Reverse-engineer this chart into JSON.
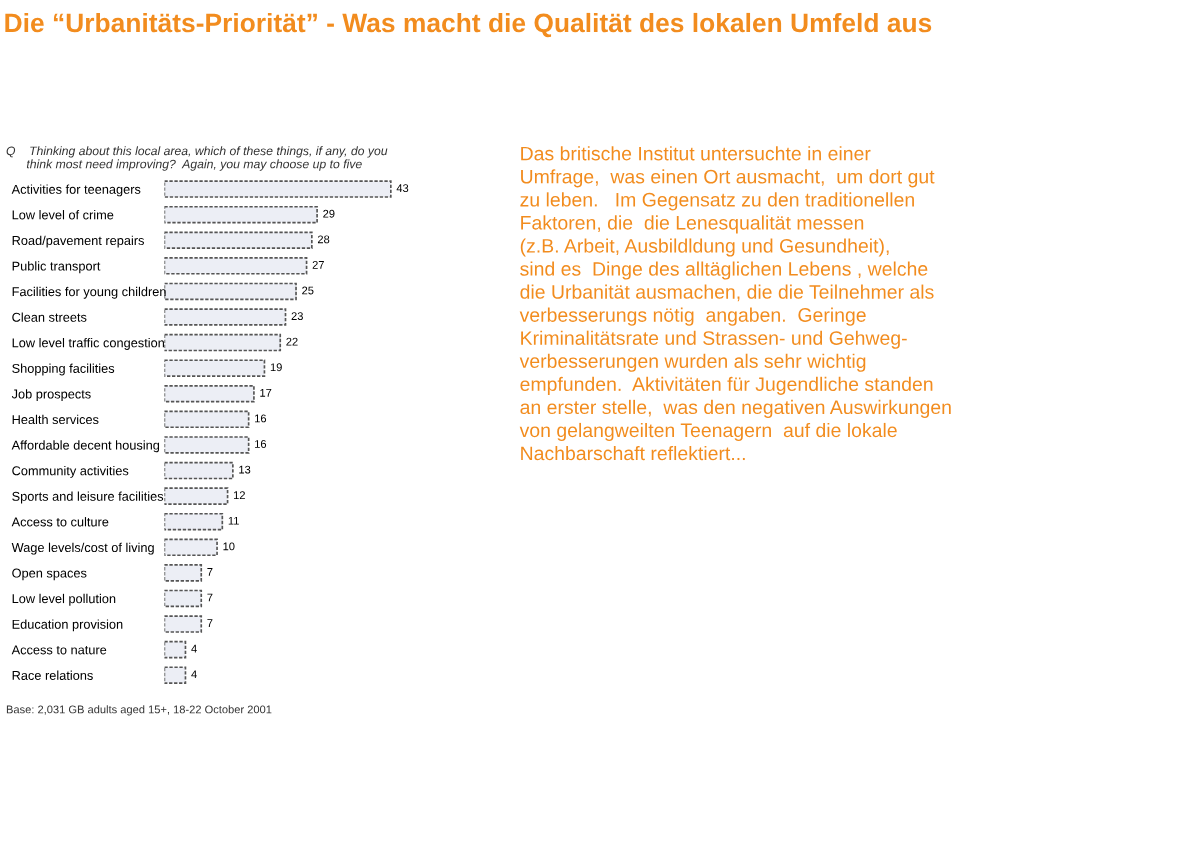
{
  "chart_data": {
    "type": "bar",
    "orientation": "horizontal",
    "title": "Die “Urbanitäts-Priorität” - Was macht die Qualität des lokalen Umfeld aus",
    "subtitle": "Q    Thinking about this local area, which of these things, if any, do you\n      think most need improving?  Again, you may choose up to five",
    "categories": [
      "Activities for teenagers",
      "Low level of crime",
      "Road/pavement repairs",
      "Public transport",
      "Facilities for young children",
      "Clean streets",
      "Low level traffic congestion",
      "Shopping facilities",
      "Job prospects",
      "Health services",
      "Affordable decent housing",
      "Community activities",
      "Sports and leisure facilities",
      "Access to culture",
      "Wage levels/cost of living",
      "Open spaces",
      "Low level pollution",
      "Education provision",
      "Access to nature",
      "Race relations"
    ],
    "values": [
      43,
      29,
      28,
      27,
      25,
      23,
      22,
      19,
      17,
      16,
      16,
      13,
      12,
      11,
      10,
      7,
      7,
      7,
      4,
      4
    ],
    "color": "#eceef5",
    "data_labels": true,
    "annotations": [
      "Base: 2,031 GB adults aged 15+, 18-22 October 2001",
      "Das britische Institut untersuchte in einer\nUmfrage,  was einen Ort ausmacht,  um dort gut\nzu leben.   Im Gegensatz zu den traditionellen\nFaktoren, die  die Lenesqualität messen\n(z.B. Arbeit, Ausbildldung und Gesundheit),\nsind es  Dinge des alltäglichen Lebens , welche\ndie Urbanität ausmachen, die die Teilnehmer als\nverbesserungs nötig  angaben.  Geringe\nKriminalitätsrate und Strassen- und Gehweg-\nverbesserungen wurden als sehr wichtig\nempfunden.  Aktivitäten für Jugendliche standen\nan erster stelle,  was den negativen Auswirkungen\nvon gelangweilten Teenagern  auf die lokale\nNachbarschaft reflektiert..."
    ]
  }
}
